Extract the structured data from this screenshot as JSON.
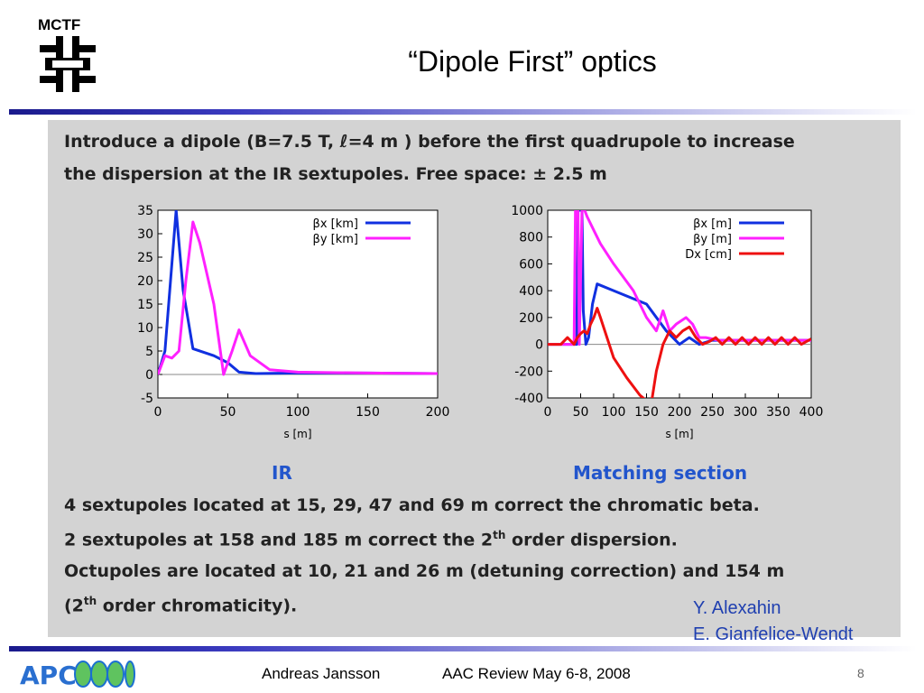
{
  "header": {
    "logo_text": "MCTF",
    "title": "“Dipole First” optics"
  },
  "panel": {
    "line1": "Introduce a dipole (B=7.5 T, ℓ=4 m ) before the first quadrupole to increase",
    "line2": "the dispersion at the IR sextupoles. Free space: ± 2.5 m",
    "bullet1": "4 sextupoles located at 15, 29, 47 and 69 m correct the chromatic beta.",
    "bullet2_pre": "2 sextupoles at 158 and 185 m correct the 2",
    "bullet2_sup": "th",
    "bullet2_post": " order dispersion.",
    "bullet3": "Octupoles are located at 10, 21 and 26 m (detuning correction) and 154 m",
    "bullet4_pre": "(2",
    "bullet4_sup": "th",
    "bullet4_post": " order chromaticity)."
  },
  "chart_data": [
    {
      "type": "line",
      "title": "IR",
      "xlabel": "s [m]",
      "ylabel": "",
      "xlim": [
        0,
        200
      ],
      "ylim": [
        -5,
        35
      ],
      "xticks": [
        "0",
        "50",
        "100",
        "150",
        "200"
      ],
      "yticks": [
        "-5",
        "0",
        "5",
        "10",
        "15",
        "20",
        "25",
        "30",
        "35"
      ],
      "legend_position": "top-right",
      "series": [
        {
          "name": "βx [km]",
          "color": "#1030e0",
          "x": [
            0,
            5,
            9,
            13,
            18,
            25,
            40,
            50,
            58,
            70,
            100,
            150,
            200
          ],
          "y": [
            0,
            5,
            20,
            35,
            18,
            5.5,
            4,
            2.5,
            0.5,
            0.2,
            0.3,
            0.3,
            0.2
          ]
        },
        {
          "name": "βy [km]",
          "color": "#ff20ff",
          "x": [
            0,
            5,
            10,
            15,
            20,
            25,
            30,
            40,
            47,
            53,
            58,
            66,
            80,
            100,
            150,
            200
          ],
          "y": [
            0,
            4,
            3.5,
            5,
            20,
            32.5,
            28,
            15,
            0,
            5,
            9.5,
            4,
            1,
            0.5,
            0.3,
            0.2
          ]
        }
      ]
    },
    {
      "type": "line",
      "title": "Matching section",
      "xlabel": "s [m]",
      "ylabel": "",
      "xlim": [
        0,
        400
      ],
      "ylim": [
        -400,
        1000
      ],
      "xticks": [
        "0",
        "50",
        "100",
        "150",
        "200",
        "250",
        "300",
        "350",
        "400"
      ],
      "yticks": [
        "-400",
        "-200",
        "0",
        "200",
        "400",
        "600",
        "800",
        "1000"
      ],
      "legend_position": "top-right",
      "series": [
        {
          "name": "βx [m]",
          "color": "#1030e0",
          "x": [
            0,
            44,
            46,
            52,
            54,
            58,
            62,
            68,
            75,
            100,
            150,
            180,
            200,
            215,
            230,
            250,
            300,
            400
          ],
          "y": [
            0,
            0,
            1000,
            1000,
            250,
            0,
            50,
            300,
            450,
            400,
            300,
            100,
            0,
            50,
            0,
            30,
            30,
            30
          ]
        },
        {
          "name": "βy [m]",
          "color": "#ff20ff",
          "x": [
            0,
            40,
            42,
            46,
            48,
            52,
            56,
            60,
            70,
            80,
            100,
            130,
            150,
            165,
            175,
            185,
            195,
            210,
            220,
            230,
            240,
            260,
            300,
            350,
            400
          ],
          "y": [
            0,
            0,
            1000,
            1000,
            0,
            1000,
            1000,
            950,
            850,
            750,
            600,
            400,
            200,
            100,
            250,
            100,
            150,
            200,
            150,
            50,
            50,
            30,
            30,
            30,
            30
          ]
        },
        {
          "name": "Dx [cm]",
          "color": "#ee1010",
          "x": [
            0,
            20,
            30,
            40,
            45,
            50,
            55,
            60,
            65,
            70,
            75,
            80,
            90,
            100,
            120,
            140,
            150,
            158,
            165,
            175,
            185,
            195,
            205,
            215,
            225,
            235,
            245,
            255,
            265,
            275,
            285,
            295,
            305,
            315,
            325,
            335,
            345,
            355,
            365,
            375,
            385,
            400
          ],
          "y": [
            0,
            0,
            50,
            0,
            50,
            80,
            100,
            80,
            150,
            200,
            270,
            200,
            50,
            -100,
            -250,
            -380,
            -420,
            -420,
            -200,
            0,
            100,
            50,
            100,
            130,
            50,
            0,
            20,
            50,
            0,
            50,
            0,
            50,
            0,
            50,
            0,
            50,
            0,
            50,
            0,
            50,
            0,
            40
          ]
        }
      ]
    }
  ],
  "credits": {
    "line1": "Y. Alexahin",
    "line2": "E. Gianfelice-Wendt"
  },
  "footer": {
    "author": "Andreas Jansson",
    "event": "AAC Review May 6-8, 2008",
    "page": "8"
  }
}
